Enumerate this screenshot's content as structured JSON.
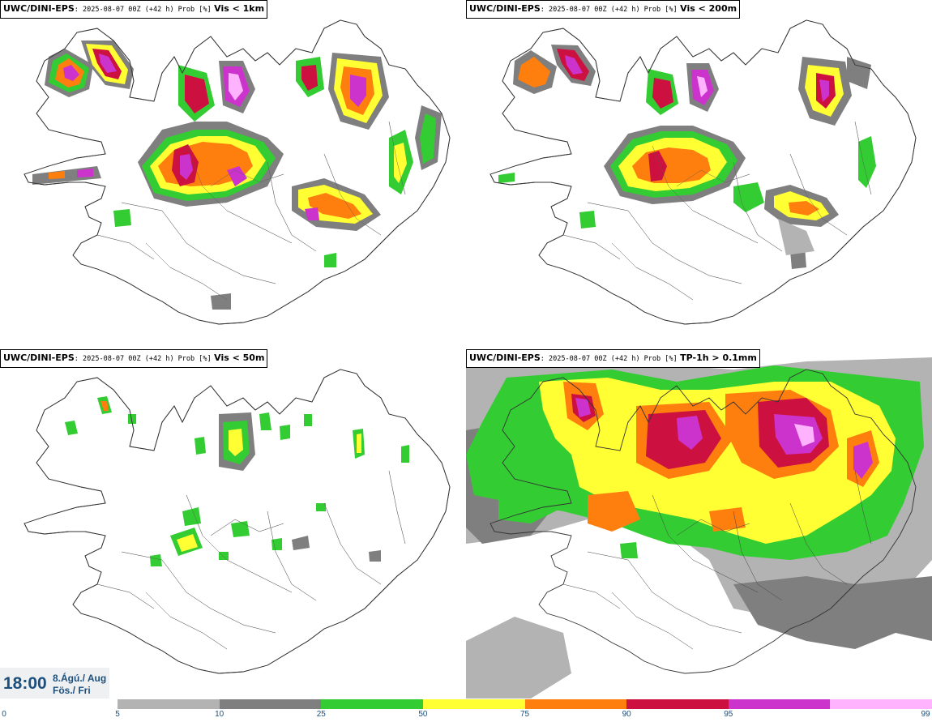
{
  "panels": [
    {
      "model": "UWC/DINI-EPS",
      "meta": ": 2025-08-07 00Z (+42 h) Prob [%]",
      "variable": "Vis < 1km"
    },
    {
      "model": "UWC/DINI-EPS",
      "meta": ": 2025-08-07 00Z (+42 h) Prob [%]",
      "variable": "Vis < 200m"
    },
    {
      "model": "UWC/DINI-EPS",
      "meta": ": 2025-08-07 00Z (+42 h) Prob [%]",
      "variable": "Vis < 50m"
    },
    {
      "model": "UWC/DINI-EPS",
      "meta": ": 2025-08-07 00Z (+42 h) Prob [%]",
      "variable": "TP-1h > 0.1mm"
    }
  ],
  "valid_time": {
    "clock": "18:00",
    "date_line1": "8.Ágú./ Aug",
    "date_line2": "Fös./ Fri"
  },
  "legend": {
    "ticks": [
      "0",
      "5",
      "10",
      "25",
      "50",
      "75",
      "90",
      "95",
      "99"
    ],
    "colors": [
      "#b3b3b3",
      "#7f7f7f",
      "#33cc33",
      "#ffff33",
      "#ff7f0e",
      "#cc1040",
      "#cc33cc",
      "#ffb3ff"
    ]
  },
  "map": {
    "region": "Iceland",
    "palette": {
      "p5": "#b3b3b3",
      "p10": "#7f7f7f",
      "p25": "#33cc33",
      "p50": "#ffff33",
      "p75": "#ff7f0e",
      "p90": "#cc1040",
      "p95": "#cc33cc",
      "p99": "#ffb3ff"
    }
  }
}
